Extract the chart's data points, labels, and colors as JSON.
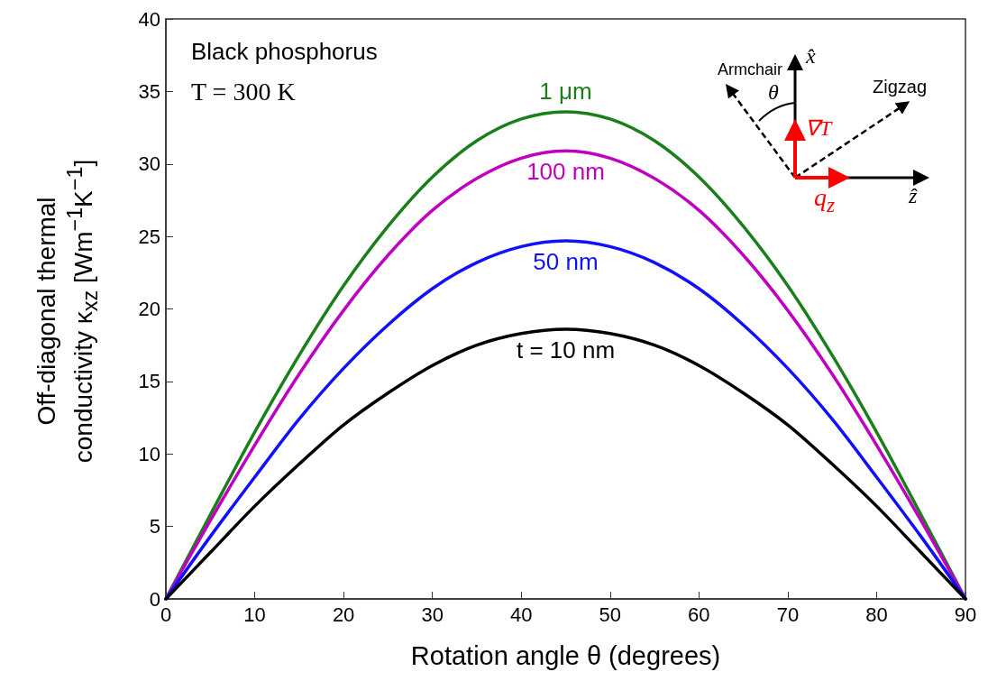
{
  "chart_data": {
    "type": "line",
    "xlabel": "Rotation angle θ (degrees)",
    "ylabel": "Off-diagonal thermal conductivity κ$_{xz}$ [Wm$^{−1}$K$^{−1}$]",
    "x": [
      0,
      5,
      10,
      15,
      20,
      25,
      30,
      35,
      40,
      45,
      50,
      55,
      60,
      65,
      70,
      75,
      80,
      85,
      90
    ],
    "series": [
      {
        "name": "1 μm",
        "color": "#1a7f1a",
        "values": [
          0,
          5.8,
          11.5,
          16.8,
          21.6,
          25.7,
          29.1,
          31.6,
          33.1,
          33.6,
          33.1,
          31.6,
          29.1,
          25.7,
          21.6,
          16.8,
          11.5,
          5.8,
          0
        ]
      },
      {
        "name": "100 nm",
        "color": "#c000c0",
        "values": [
          0,
          5.4,
          10.6,
          15.5,
          19.9,
          23.7,
          26.8,
          29.0,
          30.4,
          30.9,
          30.4,
          29.0,
          26.8,
          23.7,
          19.9,
          15.5,
          10.6,
          5.4,
          0
        ]
      },
      {
        "name": "50 nm",
        "color": "#1010ff",
        "values": [
          0,
          4.3,
          8.4,
          12.4,
          15.9,
          18.9,
          21.4,
          23.2,
          24.3,
          24.7,
          24.3,
          23.2,
          21.4,
          18.9,
          15.9,
          12.4,
          8.4,
          4.3,
          0
        ]
      },
      {
        "name": "t = 10 nm",
        "color": "#000000",
        "values": [
          0,
          3.2,
          6.4,
          9.3,
          12.0,
          14.2,
          16.1,
          17.5,
          18.3,
          18.6,
          18.3,
          17.5,
          16.1,
          14.2,
          12.0,
          9.3,
          6.4,
          3.2,
          0
        ]
      }
    ],
    "xlim": [
      0,
      90
    ],
    "xticks": [
      0,
      10,
      20,
      30,
      40,
      50,
      60,
      70,
      80,
      90
    ],
    "ylim": [
      0,
      40
    ],
    "yticks": [
      0,
      5,
      10,
      15,
      20,
      25,
      30,
      35,
      40
    ],
    "grid": false,
    "legend": false,
    "marker": "none",
    "line_style": "solid",
    "annotations": [
      "Black phosphorus",
      "T = 300 K",
      "Armchair",
      "Zigzag",
      "x̂",
      "ẑ",
      "θ",
      "∇T",
      "q$_{z}$"
    ]
  }
}
